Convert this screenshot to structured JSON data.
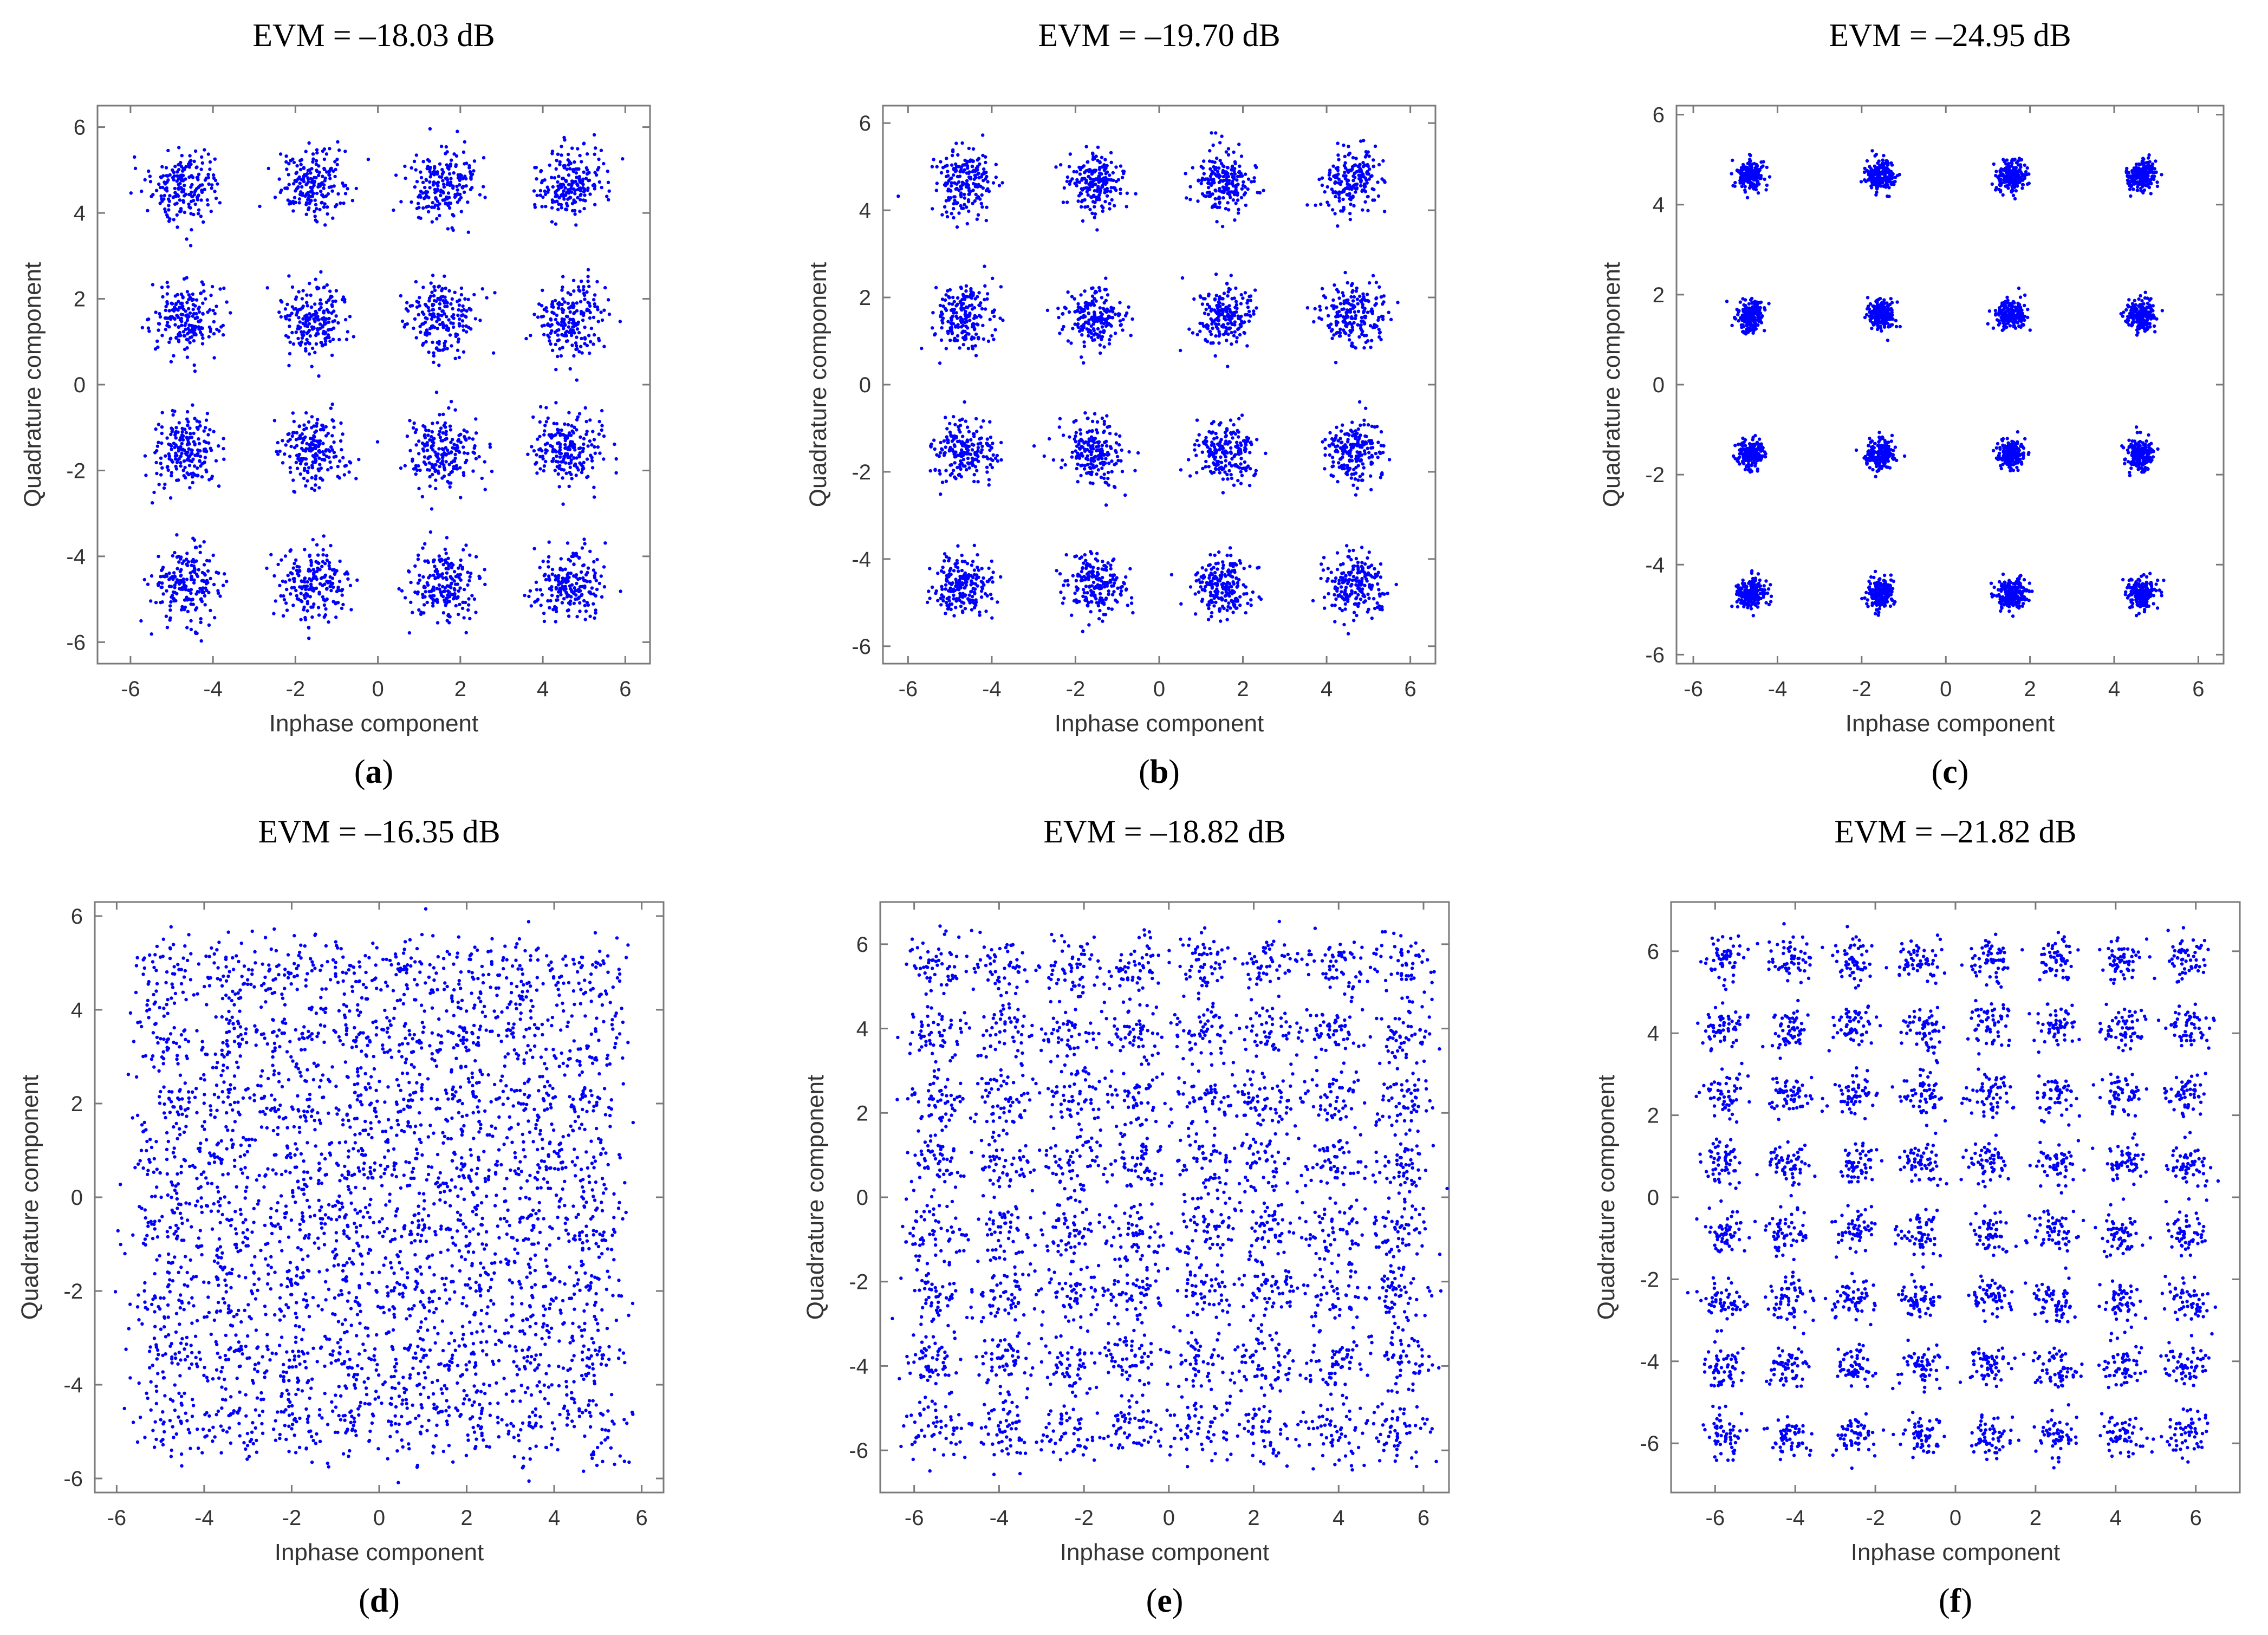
{
  "colors": {
    "points": "#0000ff",
    "axes": "#7a7a7a",
    "text": "#333333"
  },
  "chart_data": [
    {
      "type": "scatter",
      "label_prefix": "(",
      "label_letter": "a",
      "label_suffix": ")",
      "title": "EVM = –18.03 dB",
      "xlabel": "Inphase component",
      "ylabel": "Quadrature component",
      "xlim": [
        -6.8,
        6.6
      ],
      "ylim": [
        -6.5,
        6.5
      ],
      "xticks": [
        -6,
        -4,
        -2,
        0,
        2,
        4,
        6
      ],
      "yticks": [
        -6,
        -4,
        -2,
        0,
        2,
        4,
        6
      ],
      "constellation": "16-QAM",
      "centers_x": [
        -4.65,
        -1.55,
        1.55,
        4.65
      ],
      "centers_y": [
        -4.65,
        -1.55,
        1.55,
        4.65
      ],
      "noise_std": 0.42,
      "points_per_symbol": 200
    },
    {
      "type": "scatter",
      "label_prefix": "(",
      "label_letter": "b",
      "label_suffix": ")",
      "title": "EVM = –19.70 dB",
      "xlabel": "Inphase component",
      "ylabel": "Quadrature component",
      "xlim": [
        -6.6,
        6.6
      ],
      "ylim": [
        -6.4,
        6.4
      ],
      "xticks": [
        -6,
        -4,
        -2,
        0,
        2,
        4,
        6
      ],
      "yticks": [
        -6,
        -4,
        -2,
        0,
        2,
        4,
        6
      ],
      "constellation": "16-QAM",
      "centers_x": [
        -4.65,
        -1.55,
        1.55,
        4.65
      ],
      "centers_y": [
        -4.65,
        -1.55,
        1.55,
        4.65
      ],
      "noise_std": 0.36,
      "points_per_symbol": 200
    },
    {
      "type": "scatter",
      "label_prefix": "(",
      "label_letter": "c",
      "label_suffix": ")",
      "title": "EVM = –24.95 dB",
      "xlabel": "Inphase component",
      "ylabel": "Quadrature component",
      "xlim": [
        -6.4,
        6.6
      ],
      "ylim": [
        -6.2,
        6.2
      ],
      "xticks": [
        -6,
        -4,
        -2,
        0,
        2,
        4,
        6
      ],
      "yticks": [
        -6,
        -4,
        -2,
        0,
        2,
        4,
        6
      ],
      "constellation": "16-QAM",
      "centers_x": [
        -4.65,
        -1.55,
        1.55,
        4.65
      ],
      "centers_y": [
        -4.65,
        -1.55,
        1.55,
        4.65
      ],
      "noise_std": 0.17,
      "points_per_symbol": 200
    },
    {
      "type": "scatter",
      "label_prefix": "(",
      "label_letter": "d",
      "label_suffix": ")",
      "title": "EVM = –16.35 dB",
      "xlabel": "Inphase component",
      "ylabel": "Quadrature component",
      "xlim": [
        -6.5,
        6.5
      ],
      "ylim": [
        -6.3,
        6.3
      ],
      "xticks": [
        -6,
        -4,
        -2,
        0,
        2,
        4,
        6
      ],
      "yticks": [
        -6,
        -4,
        -2,
        0,
        2,
        4,
        6
      ],
      "constellation": "64-QAM",
      "centers_x": [
        -4.8,
        -3.4,
        -2.0,
        -0.65,
        0.65,
        2.0,
        3.4,
        4.8
      ],
      "centers_y": [
        -4.8,
        -3.4,
        -2.0,
        -0.65,
        0.65,
        2.0,
        3.4,
        4.8
      ],
      "noise_std": 0.45,
      "points_per_symbol": 55
    },
    {
      "type": "scatter",
      "label_prefix": "(",
      "label_letter": "e",
      "label_suffix": ")",
      "title": "EVM = –18.82 dB",
      "xlabel": "Inphase component",
      "ylabel": "Quadrature component",
      "xlim": [
        -6.8,
        6.6
      ],
      "ylim": [
        -7.0,
        7.0
      ],
      "xticks": [
        -6,
        -4,
        -2,
        0,
        2,
        4,
        6
      ],
      "yticks": [
        -6,
        -4,
        -2,
        0,
        2,
        4,
        6
      ],
      "constellation": "64-QAM",
      "centers_x": [
        -5.5,
        -3.9,
        -2.3,
        -0.8,
        0.8,
        2.3,
        3.9,
        5.5
      ],
      "centers_y": [
        -5.5,
        -3.9,
        -2.3,
        -0.8,
        0.8,
        2.3,
        3.9,
        5.5
      ],
      "noise_std": 0.38,
      "points_per_symbol": 55
    },
    {
      "type": "scatter",
      "label_prefix": "(",
      "label_letter": "f",
      "label_suffix": ")",
      "title": "EVM = –21.82 dB",
      "xlabel": "Inphase component",
      "ylabel": "Quadrature component",
      "xlim": [
        -7.1,
        7.1
      ],
      "ylim": [
        -7.2,
        7.2
      ],
      "xticks": [
        -6,
        -4,
        -2,
        0,
        2,
        4,
        6
      ],
      "yticks": [
        -6,
        -4,
        -2,
        0,
        2,
        4,
        6
      ],
      "constellation": "64-QAM",
      "centers_x": [
        -5.8,
        -4.15,
        -2.5,
        -0.85,
        0.85,
        2.5,
        4.15,
        5.8
      ],
      "centers_y": [
        -5.8,
        -4.15,
        -2.5,
        -0.85,
        0.85,
        2.5,
        4.15,
        5.8
      ],
      "noise_std": 0.27,
      "points_per_symbol": 55
    }
  ]
}
